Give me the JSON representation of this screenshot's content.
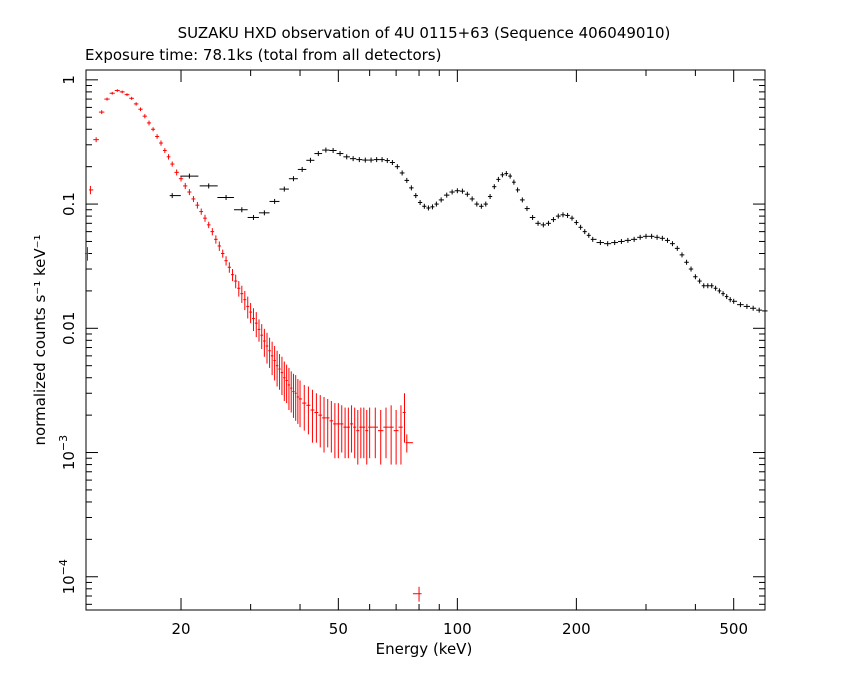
{
  "chart_data": {
    "type": "scatter",
    "title": "SUZAKU HXD observation of 4U 0115+63 (Sequence 406049010)",
    "subtitle": "Exposure time: 78.1ks (total from all detectors)",
    "xlabel": "Energy (keV)",
    "ylabel": "normalized counts s⁻¹ keV⁻¹",
    "xscale": "log",
    "yscale": "log",
    "xlim": [
      11.5,
      600
    ],
    "ylim": [
      5.4e-05,
      1.2
    ],
    "grid": false,
    "xticks": [
      {
        "value": 20,
        "label": "20"
      },
      {
        "value": 50,
        "label": "50"
      },
      {
        "value": 100,
        "label": "100"
      },
      {
        "value": 200,
        "label": "200"
      },
      {
        "value": 500,
        "label": "500"
      }
    ],
    "yticks": [
      {
        "value": 1,
        "label": "1",
        "base": "",
        "exp": ""
      },
      {
        "value": 0.1,
        "label": "0.1",
        "base": "",
        "exp": ""
      },
      {
        "value": 0.01,
        "label": "0.01",
        "base": "",
        "exp": ""
      },
      {
        "value": 0.001,
        "label": "",
        "base": "10",
        "exp": "−3"
      },
      {
        "value": 0.0001,
        "label": "",
        "base": "10",
        "exp": "−4"
      }
    ],
    "series": [
      {
        "color": "#ff0000",
        "points": [
          [
            11.6,
            0.04,
            0.005
          ],
          [
            11.8,
            0.13,
            0.01
          ],
          [
            12.2,
            0.33,
            0.015
          ],
          [
            12.6,
            0.55,
            0.02
          ],
          [
            13.0,
            0.7,
            0.02
          ],
          [
            13.4,
            0.78,
            0.02
          ],
          [
            13.8,
            0.82,
            0.02
          ],
          [
            14.2,
            0.8,
            0.02
          ],
          [
            14.6,
            0.76,
            0.02
          ],
          [
            15.0,
            0.71,
            0.02
          ],
          [
            15.4,
            0.64,
            0.02
          ],
          [
            15.8,
            0.58,
            0.02
          ],
          [
            16.2,
            0.51,
            0.02
          ],
          [
            16.6,
            0.45,
            0.02
          ],
          [
            17.0,
            0.4,
            0.015
          ],
          [
            17.4,
            0.35,
            0.015
          ],
          [
            17.8,
            0.31,
            0.015
          ],
          [
            18.2,
            0.27,
            0.012
          ],
          [
            18.6,
            0.24,
            0.012
          ],
          [
            19.0,
            0.21,
            0.01
          ],
          [
            19.5,
            0.18,
            0.01
          ],
          [
            20.0,
            0.16,
            0.008
          ],
          [
            20.5,
            0.14,
            0.008
          ],
          [
            21.0,
            0.125,
            0.007
          ],
          [
            21.5,
            0.11,
            0.006
          ],
          [
            22.0,
            0.098,
            0.006
          ],
          [
            22.5,
            0.087,
            0.005
          ],
          [
            23.0,
            0.077,
            0.005
          ],
          [
            23.5,
            0.068,
            0.004
          ],
          [
            24.0,
            0.06,
            0.004
          ],
          [
            24.5,
            0.052,
            0.004
          ],
          [
            25.0,
            0.046,
            0.004
          ],
          [
            25.5,
            0.04,
            0.003
          ],
          [
            26.0,
            0.035,
            0.003
          ],
          [
            26.5,
            0.031,
            0.003
          ],
          [
            27.0,
            0.027,
            0.003
          ],
          [
            27.5,
            0.024,
            0.003
          ],
          [
            28.0,
            0.021,
            0.003
          ],
          [
            28.5,
            0.019,
            0.003
          ],
          [
            29.0,
            0.017,
            0.003
          ],
          [
            29.5,
            0.015,
            0.003
          ],
          [
            30.0,
            0.0135,
            0.0025
          ],
          [
            30.5,
            0.012,
            0.0025
          ],
          [
            31.0,
            0.011,
            0.0025
          ],
          [
            31.5,
            0.0098,
            0.002
          ],
          [
            32.0,
            0.0088,
            0.002
          ],
          [
            32.5,
            0.0079,
            0.002
          ],
          [
            33.0,
            0.0072,
            0.002
          ],
          [
            33.5,
            0.0066,
            0.0018
          ],
          [
            34.0,
            0.006,
            0.0018
          ],
          [
            34.5,
            0.0055,
            0.0017
          ],
          [
            35.0,
            0.005,
            0.0016
          ],
          [
            35.5,
            0.0047,
            0.0015
          ],
          [
            36.0,
            0.0044,
            0.0015
          ],
          [
            36.5,
            0.004,
            0.0014
          ],
          [
            37.0,
            0.0038,
            0.0013
          ],
          [
            37.5,
            0.0035,
            0.0013
          ],
          [
            38.0,
            0.0033,
            0.0012
          ],
          [
            38.5,
            0.0031,
            0.0012
          ],
          [
            39.0,
            0.003,
            0.0012
          ],
          [
            39.5,
            0.0028,
            0.0011
          ],
          [
            40.0,
            0.0027,
            0.0011
          ],
          [
            41.0,
            0.0025,
            0.001
          ],
          [
            42.0,
            0.0024,
            0.001
          ],
          [
            43.0,
            0.0022,
            0.001
          ],
          [
            44.0,
            0.0021,
            0.0009
          ],
          [
            45.0,
            0.002,
            0.0009
          ],
          [
            46.0,
            0.0019,
            0.0009
          ],
          [
            47.0,
            0.0019,
            0.0008
          ],
          [
            48.0,
            0.0018,
            0.0008
          ],
          [
            49.0,
            0.0017,
            0.0008
          ],
          [
            50.0,
            0.0017,
            0.0008
          ],
          [
            51.0,
            0.0017,
            0.0007
          ],
          [
            52.0,
            0.0016,
            0.0007
          ],
          [
            53.0,
            0.0016,
            0.0007
          ],
          [
            54.0,
            0.0017,
            0.0007
          ],
          [
            55.0,
            0.0016,
            0.0007
          ],
          [
            56.0,
            0.0015,
            0.0007
          ],
          [
            57.0,
            0.0016,
            0.0007
          ],
          [
            58.0,
            0.0016,
            0.0007
          ],
          [
            59.0,
            0.0015,
            0.0007
          ],
          [
            60.0,
            0.0016,
            0.0007
          ],
          [
            62.0,
            0.0016,
            0.0007
          ],
          [
            64.0,
            0.0015,
            0.0007
          ],
          [
            66.0,
            0.0016,
            0.0007
          ],
          [
            68.0,
            0.0016,
            0.0008
          ],
          [
            70.0,
            0.0015,
            0.0007
          ],
          [
            72.0,
            0.0016,
            0.0008
          ],
          [
            73.5,
            0.0021,
            0.0009
          ],
          [
            74.5,
            0.0012,
            0.0002
          ],
          [
            80.0,
            7.3e-05,
            1e-05
          ]
        ]
      },
      {
        "color": "#000000",
        "points": [
          [
            19.0,
            0.117
          ],
          [
            21.0,
            0.168
          ],
          [
            23.5,
            0.14
          ],
          [
            26.0,
            0.113
          ],
          [
            28.5,
            0.09
          ],
          [
            30.5,
            0.078
          ],
          [
            32.5,
            0.085
          ],
          [
            34.5,
            0.105
          ],
          [
            36.5,
            0.132
          ],
          [
            38.5,
            0.16
          ],
          [
            40.5,
            0.19
          ],
          [
            42.5,
            0.225
          ],
          [
            44.5,
            0.255
          ],
          [
            46.5,
            0.272
          ],
          [
            48.5,
            0.27
          ],
          [
            50.5,
            0.255
          ],
          [
            52.5,
            0.24
          ],
          [
            54.5,
            0.232
          ],
          [
            56.5,
            0.228
          ],
          [
            58.5,
            0.226
          ],
          [
            60.5,
            0.226
          ],
          [
            62.5,
            0.228
          ],
          [
            64.5,
            0.228
          ],
          [
            66.5,
            0.224
          ],
          [
            68.5,
            0.216
          ],
          [
            70.5,
            0.2
          ],
          [
            72.5,
            0.178
          ],
          [
            74.5,
            0.155
          ],
          [
            76.5,
            0.135
          ],
          [
            78.5,
            0.117
          ],
          [
            80.5,
            0.103
          ],
          [
            82.5,
            0.096
          ],
          [
            84.5,
            0.093
          ],
          [
            86.5,
            0.095
          ],
          [
            88.5,
            0.1
          ],
          [
            91.0,
            0.108
          ],
          [
            94.0,
            0.118
          ],
          [
            97.0,
            0.125
          ],
          [
            100.0,
            0.128
          ],
          [
            103.0,
            0.127
          ],
          [
            106.0,
            0.12
          ],
          [
            109.0,
            0.11
          ],
          [
            112.0,
            0.1
          ],
          [
            115.0,
            0.096
          ],
          [
            118.0,
            0.1
          ],
          [
            121.0,
            0.115
          ],
          [
            124.0,
            0.138
          ],
          [
            127.0,
            0.158
          ],
          [
            130.0,
            0.172
          ],
          [
            133.0,
            0.176
          ],
          [
            136.0,
            0.168
          ],
          [
            139.0,
            0.15
          ],
          [
            142.0,
            0.13
          ],
          [
            146.0,
            0.108
          ],
          [
            150.0,
            0.092
          ],
          [
            155.0,
            0.078
          ],
          [
            160.0,
            0.07
          ],
          [
            165.0,
            0.068
          ],
          [
            170.0,
            0.07
          ],
          [
            175.0,
            0.075
          ],
          [
            180.0,
            0.08
          ],
          [
            185.0,
            0.082
          ],
          [
            190.0,
            0.081
          ],
          [
            195.0,
            0.077
          ],
          [
            200.0,
            0.071
          ],
          [
            205.0,
            0.065
          ],
          [
            210.0,
            0.06
          ],
          [
            215.0,
            0.056
          ],
          [
            220.0,
            0.052
          ],
          [
            230.0,
            0.049
          ],
          [
            240.0,
            0.048
          ],
          [
            250.0,
            0.049
          ],
          [
            260.0,
            0.05
          ],
          [
            270.0,
            0.051
          ],
          [
            280.0,
            0.052
          ],
          [
            290.0,
            0.054
          ],
          [
            300.0,
            0.055
          ],
          [
            310.0,
            0.055
          ],
          [
            320.0,
            0.054
          ],
          [
            330.0,
            0.053
          ],
          [
            340.0,
            0.051
          ],
          [
            350.0,
            0.048
          ],
          [
            360.0,
            0.044
          ],
          [
            370.0,
            0.039
          ],
          [
            380.0,
            0.034
          ],
          [
            390.0,
            0.03
          ],
          [
            400.0,
            0.026
          ],
          [
            410.0,
            0.024
          ],
          [
            420.0,
            0.022
          ],
          [
            430.0,
            0.022
          ],
          [
            440.0,
            0.022
          ],
          [
            450.0,
            0.021
          ],
          [
            460.0,
            0.02
          ],
          [
            470.0,
            0.019
          ],
          [
            480.0,
            0.018
          ],
          [
            490.0,
            0.017
          ],
          [
            500.0,
            0.0165
          ],
          [
            520.0,
            0.0155
          ],
          [
            540.0,
            0.015
          ],
          [
            560.0,
            0.0145
          ],
          [
            580.0,
            0.014
          ],
          [
            600.0,
            0.0138
          ]
        ]
      }
    ]
  }
}
